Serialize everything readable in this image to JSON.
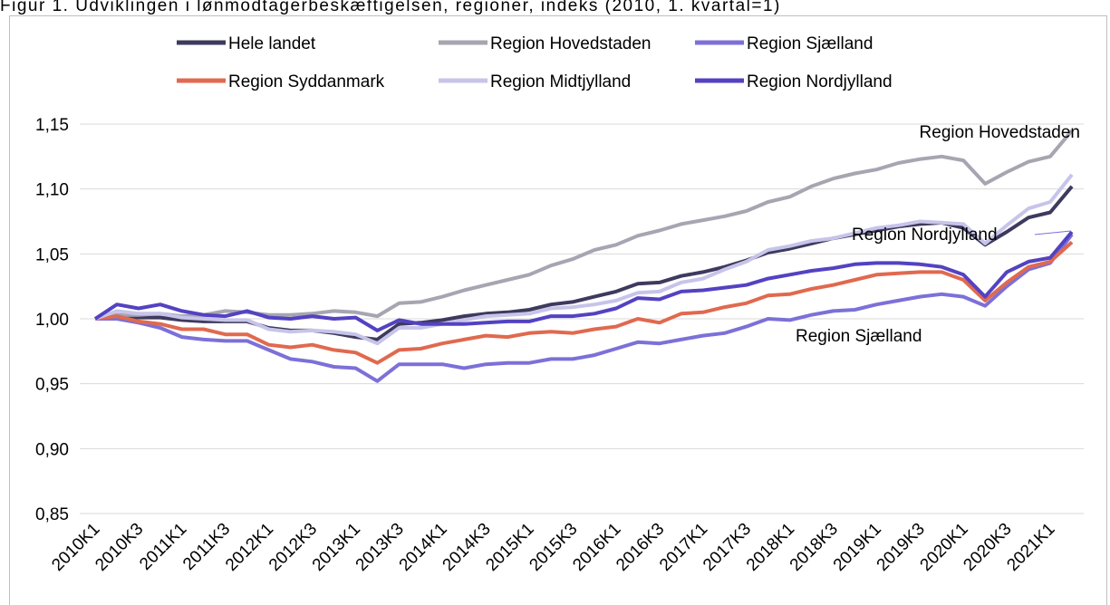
{
  "chart_data": {
    "type": "line",
    "title": "Figur 1. Udviklingen i lønmodtagerbeskæftigelsen, regioner, indeks (2010, 1. kvartal=1)",
    "categories": [
      "2010K1",
      null,
      "2010K3",
      null,
      "2011K1",
      null,
      "2011K3",
      null,
      "2012K1",
      null,
      "2012K3",
      null,
      "2013K1",
      null,
      "2013K3",
      null,
      "2014K1",
      null,
      "2014K3",
      null,
      "2015K1",
      null,
      "2015K3",
      null,
      "2016K1",
      null,
      "2016K3",
      null,
      "2017K1",
      null,
      "2017K3",
      null,
      "2018K1",
      null,
      "2018K3",
      null,
      "2019K1",
      null,
      "2019K3",
      null,
      "2020K1",
      null,
      "2020K3",
      null,
      "2021K1",
      null
    ],
    "series": [
      {
        "name": "Hele landet",
        "color": "#3e3a5e",
        "values": [
          1.0,
          1.002,
          1.001,
          1.001,
          0.999,
          0.998,
          0.998,
          0.998,
          0.993,
          0.991,
          0.991,
          0.989,
          0.986,
          0.984,
          0.996,
          0.997,
          0.999,
          1.002,
          1.004,
          1.005,
          1.007,
          1.011,
          1.013,
          1.017,
          1.021,
          1.027,
          1.028,
          1.033,
          1.036,
          1.04,
          1.045,
          1.051,
          1.054,
          1.058,
          1.062,
          1.065,
          1.068,
          1.071,
          1.073,
          1.074,
          1.07,
          1.057,
          1.067,
          1.078,
          1.082,
          1.102
        ]
      },
      {
        "name": "Region Hovedstaden",
        "color": "#a6a5b1",
        "values": [
          1.0,
          1.003,
          1.003,
          1.004,
          1.002,
          1.003,
          1.006,
          1.005,
          1.003,
          1.003,
          1.004,
          1.006,
          1.005,
          1.002,
          1.012,
          1.013,
          1.017,
          1.022,
          1.026,
          1.03,
          1.034,
          1.041,
          1.046,
          1.053,
          1.057,
          1.064,
          1.068,
          1.073,
          1.076,
          1.079,
          1.083,
          1.09,
          1.094,
          1.102,
          1.108,
          1.112,
          1.115,
          1.12,
          1.123,
          1.125,
          1.122,
          1.104,
          1.113,
          1.121,
          1.125,
          1.145
        ]
      },
      {
        "name": "Region Sjælland",
        "color": "#7c70d8",
        "values": [
          1.0,
          1.0,
          0.997,
          0.993,
          0.986,
          0.984,
          0.983,
          0.983,
          0.976,
          0.969,
          0.967,
          0.963,
          0.962,
          0.952,
          0.965,
          0.965,
          0.965,
          0.962,
          0.965,
          0.966,
          0.966,
          0.969,
          0.969,
          0.972,
          0.977,
          0.982,
          0.981,
          0.984,
          0.987,
          0.989,
          0.994,
          1.0,
          0.999,
          1.003,
          1.006,
          1.007,
          1.011,
          1.014,
          1.017,
          1.019,
          1.017,
          1.01,
          1.025,
          1.038,
          1.043,
          1.065
        ]
      },
      {
        "name": "Region Syddanmark",
        "color": "#e0694f",
        "values": [
          1.0,
          1.002,
          0.998,
          0.996,
          0.992,
          0.992,
          0.988,
          0.988,
          0.98,
          0.978,
          0.98,
          0.976,
          0.974,
          0.966,
          0.976,
          0.977,
          0.981,
          0.984,
          0.987,
          0.986,
          0.989,
          0.99,
          0.989,
          0.992,
          0.994,
          1.0,
          0.997,
          1.004,
          1.005,
          1.009,
          1.012,
          1.018,
          1.019,
          1.023,
          1.026,
          1.03,
          1.034,
          1.035,
          1.036,
          1.036,
          1.03,
          1.014,
          1.028,
          1.04,
          1.044,
          1.059
        ]
      },
      {
        "name": "Region Midtjylland",
        "color": "#c7c4ea",
        "values": [
          1.0,
          1.006,
          1.004,
          1.004,
          1.001,
          1.0,
          0.999,
          0.999,
          0.992,
          0.99,
          0.991,
          0.99,
          0.988,
          0.981,
          0.993,
          0.993,
          0.996,
          0.999,
          1.002,
          1.003,
          1.004,
          1.008,
          1.009,
          1.011,
          1.014,
          1.02,
          1.021,
          1.028,
          1.031,
          1.038,
          1.044,
          1.053,
          1.056,
          1.06,
          1.062,
          1.066,
          1.07,
          1.072,
          1.075,
          1.074,
          1.073,
          1.058,
          1.072,
          1.085,
          1.09,
          1.111
        ]
      },
      {
        "name": "Region Nordjylland",
        "color": "#5342c2",
        "values": [
          1.0,
          1.011,
          1.008,
          1.011,
          1.006,
          1.003,
          1.002,
          1.006,
          1.001,
          1.0,
          1.002,
          1.0,
          1.001,
          0.991,
          0.999,
          0.996,
          0.996,
          0.996,
          0.997,
          0.998,
          0.998,
          1.002,
          1.002,
          1.004,
          1.008,
          1.016,
          1.015,
          1.021,
          1.022,
          1.024,
          1.026,
          1.031,
          1.034,
          1.037,
          1.039,
          1.042,
          1.043,
          1.043,
          1.042,
          1.04,
          1.034,
          1.017,
          1.036,
          1.044,
          1.047,
          1.067
        ]
      }
    ],
    "ylim": [
      0.85,
      1.15
    ],
    "yticks": [
      {
        "value": 0.85,
        "label": "0,85"
      },
      {
        "value": 0.9,
        "label": "0,90"
      },
      {
        "value": 0.95,
        "label": "0,95"
      },
      {
        "value": 1.0,
        "label": "1,00"
      },
      {
        "value": 1.05,
        "label": "1,05"
      },
      {
        "value": 1.1,
        "label": "1,10"
      },
      {
        "value": 1.15,
        "label": "1,15"
      }
    ],
    "grid": true,
    "legend": "top",
    "annotations": [
      "Region Hovedstaden",
      "Region Nordjylland",
      "Region Sjælland"
    ]
  }
}
